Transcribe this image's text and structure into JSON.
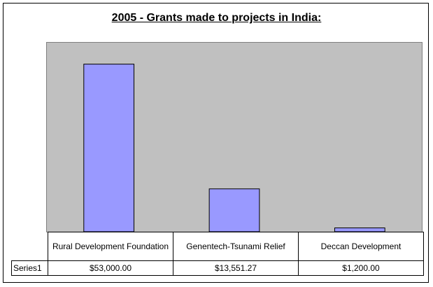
{
  "chart_data": {
    "type": "bar",
    "title": "2005 - Grants made to projects in India:",
    "categories": [
      "Rural Development Foundation",
      "Genentech-Tsunami Relief",
      "Deccan Development"
    ],
    "series": [
      {
        "name": "Series1",
        "values": [
          53000.0,
          13551.27,
          1200.0
        ]
      }
    ],
    "value_labels": [
      "$53,000.00",
      "$13,551.27",
      "$1,200.00"
    ],
    "ylim": [
      0,
      60000
    ],
    "bar_color": "#9999ff",
    "plot_background": "#c0c0c0",
    "gridlines": false,
    "legend": "data-table"
  }
}
